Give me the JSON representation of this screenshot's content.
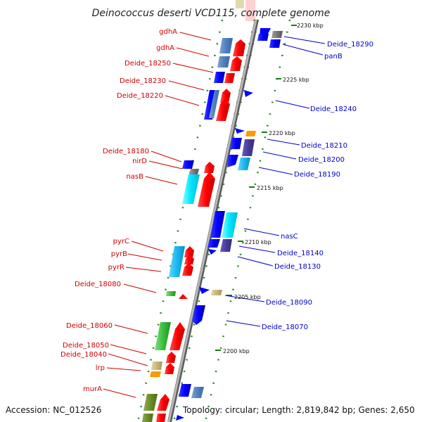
{
  "title": "Deinococcus deserti VCD115, complete genome",
  "accession": "Accession: NC_012526",
  "topology": "Topology: circular; Length: 2,819,842 bp; Genes: 2,650",
  "colors": {
    "left_label": "#d00000",
    "right_label": "#0000cc",
    "backbone": "#8f8f8f",
    "tick": "#228b22"
  },
  "left_labels": [
    "gdhA",
    "gdhA",
    "Deide_18250",
    "Deide_18230",
    "Deide_18220",
    "Deide_18180",
    "nirD",
    "nasB",
    "pyrC",
    "pyrB",
    "pyrR",
    "Deide_18080",
    "Deide_18060",
    "Deide_18050",
    "Deide_18040",
    "lrp",
    "murA"
  ],
  "right_labels": [
    "Deide_18290",
    "panB",
    "Deide_18240",
    "Deide_18210",
    "Deide_18200",
    "Deide_18190",
    "nasC",
    "Deide_18140",
    "Deide_18130",
    "Deide_18090",
    "Deide_18070"
  ],
  "kbp_labels": [
    "2230 kbp",
    "2225 kbp",
    "2220 kbp",
    "2215 kbp",
    "2210 kbp",
    "2205 kbp",
    "2200 kbp"
  ]
}
